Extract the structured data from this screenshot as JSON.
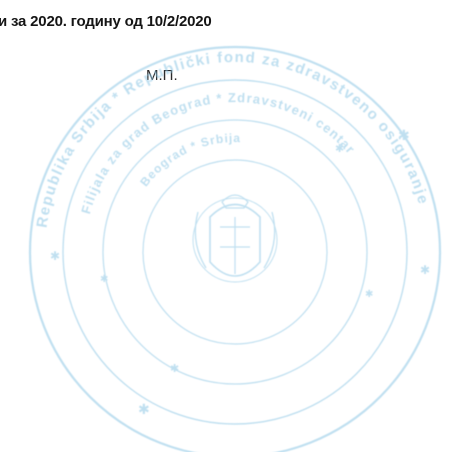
{
  "document": {
    "header_text": "и за 2020. годину од 10/2/2020",
    "seal_label": "М.П."
  },
  "stamp": {
    "ink_color": "#8cc6e4",
    "outer_text": "Republika Srbija * Republički fond za zdravstveno osiguranje",
    "middle_text": "Filijala za grad Beograd * Zdravstveni centar",
    "inner_text": "Beograd * Srbija"
  }
}
